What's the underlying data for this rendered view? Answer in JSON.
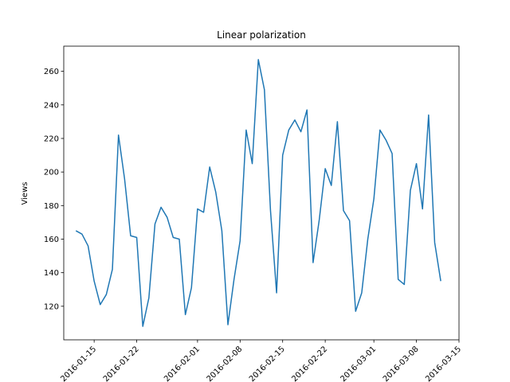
{
  "chart_data": {
    "type": "line",
    "title": "Linear polarization",
    "xlabel": "",
    "ylabel": "Views",
    "x_start": "2016-01-12",
    "x_step_days": 1,
    "xlim": [
      "2016-01-10",
      "2016-03-15"
    ],
    "ylim": [
      100,
      275
    ],
    "y_ticks": [
      120,
      140,
      160,
      180,
      200,
      220,
      240,
      260
    ],
    "x_ticks": [
      {
        "date": "2016-01-15",
        "label": "2016-01-15"
      },
      {
        "date": "2016-01-22",
        "label": "2016-01-22"
      },
      {
        "date": "2016-02-01",
        "label": "2016-02-01"
      },
      {
        "date": "2016-02-08",
        "label": "2016-02-08"
      },
      {
        "date": "2016-02-15",
        "label": "2016-02-15"
      },
      {
        "date": "2016-02-22",
        "label": "2016-02-22"
      },
      {
        "date": "2016-03-01",
        "label": "2016-03-01"
      },
      {
        "date": "2016-03-08",
        "label": "2016-03-08"
      },
      {
        "date": "2016-03-15",
        "label": "2016-03-15"
      }
    ],
    "grid": false,
    "color": "#1f77b4",
    "series": [
      {
        "values": [
          165,
          163,
          156,
          135,
          121,
          127,
          142,
          222,
          196,
          162,
          161,
          108,
          125,
          169,
          179,
          173,
          161,
          160,
          115,
          131,
          178,
          176,
          203,
          188,
          165,
          109,
          136,
          159,
          225,
          205,
          267,
          249,
          177,
          128,
          210,
          225,
          231,
          224,
          237,
          146,
          171,
          202,
          192,
          230,
          177,
          171,
          117,
          128,
          160,
          184,
          225,
          219,
          211,
          136,
          133,
          189,
          205,
          178,
          234,
          158,
          135
        ]
      }
    ]
  }
}
